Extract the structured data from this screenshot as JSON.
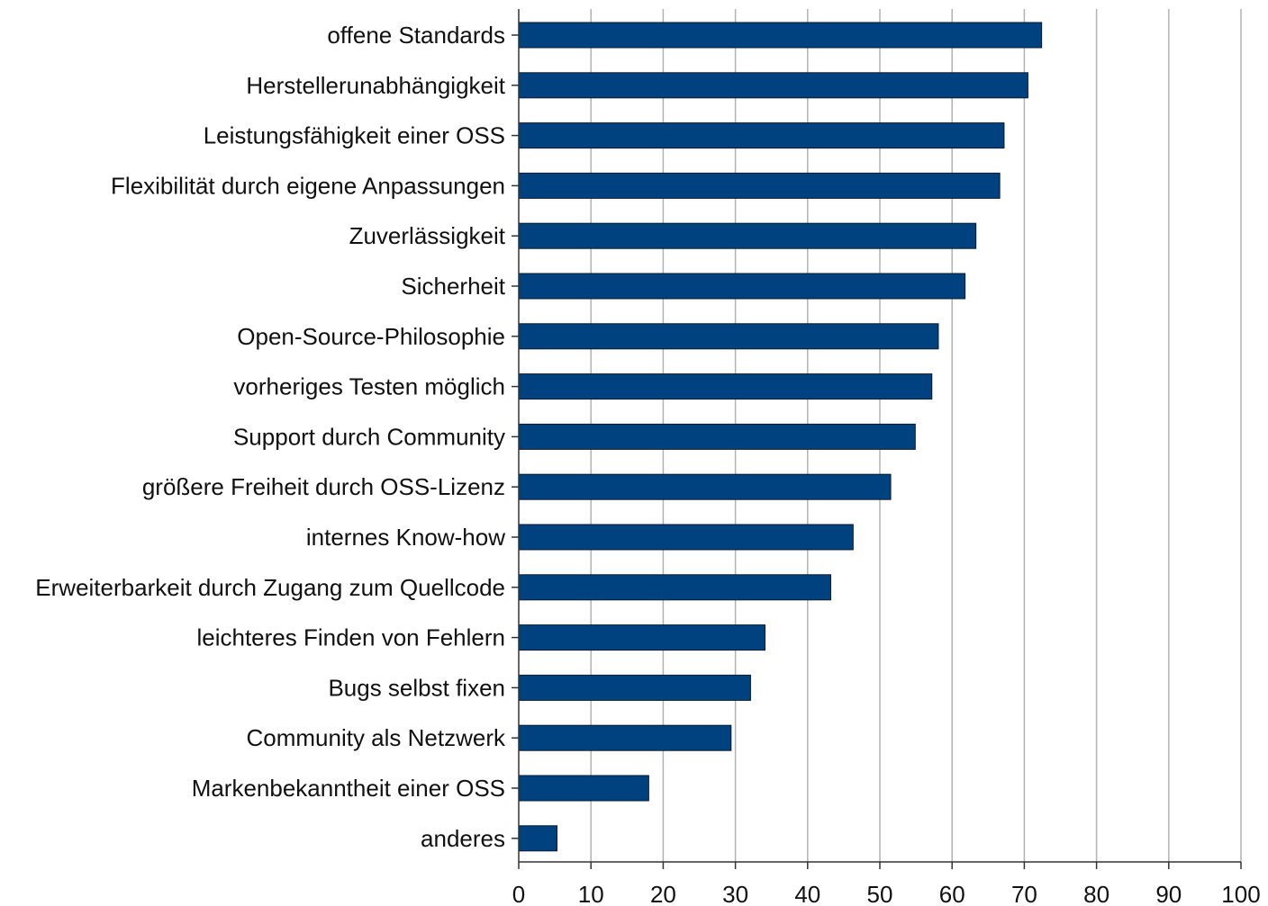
{
  "chart_data": {
    "type": "bar",
    "orientation": "horizontal",
    "categories": [
      "offene Standards",
      "Herstellerunabhängigkeit",
      "Leistungsfähigkeit einer OSS",
      "Flexibilität durch eigene Anpassungen",
      "Zuverlässigkeit",
      "Sicherheit",
      "Open-Source-Philosophie",
      "vorheriges Testen möglich",
      "Support durch Community",
      "größere Freiheit durch OSS-Lizenz",
      "internes Know-how",
      "Erweiterbarkeit durch Zugang zum Quellcode",
      "leichteres Finden von Fehlern",
      "Bugs selbst fixen",
      "Community als Netzwerk",
      "Markenbekanntheit einer OSS",
      "anderes"
    ],
    "values": [
      72.4,
      70.5,
      67.2,
      66.6,
      63.3,
      61.8,
      58.1,
      57.2,
      54.9,
      51.5,
      46.3,
      43.2,
      34.1,
      32.1,
      29.4,
      18.0,
      5.3
    ],
    "xlim": [
      0,
      100
    ],
    "xticks": [
      "0",
      "10",
      "20",
      "30",
      "40",
      "50",
      "60",
      "70",
      "80",
      "90",
      "100"
    ],
    "title": "",
    "xlabel": "",
    "ylabel": "",
    "grid": "vertical",
    "legend": "none",
    "bar_color": "#00427f",
    "bar_edge_color": "#0a1a2e",
    "grid_color": "#b3b3b3",
    "axis_color": "#333333"
  }
}
